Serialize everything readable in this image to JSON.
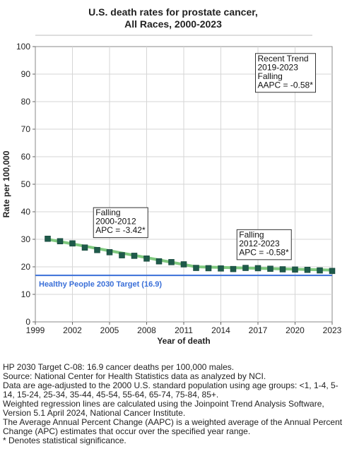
{
  "chart_data": {
    "type": "line",
    "title": [
      "U.S. death rates for prostate cancer,",
      "All Races,  2000-2023"
    ],
    "xlabel": "Year of death",
    "ylabel": "Rate per 100,000",
    "xlim": [
      1999,
      2023
    ],
    "ylim": [
      0,
      100
    ],
    "x_ticks": [
      1999,
      2002,
      2005,
      2008,
      2011,
      2014,
      2017,
      2020,
      2023
    ],
    "y_ticks": [
      0,
      10,
      20,
      30,
      40,
      50,
      60,
      70,
      80,
      90,
      100
    ],
    "grid": true,
    "series": [
      {
        "name": "",
        "marker": "square",
        "color": "#1e5a4a",
        "x": [
          2000,
          2001,
          2002,
          2003,
          2004,
          2005,
          2006,
          2007,
          2008,
          2009,
          2010,
          2011,
          2012,
          2013,
          2014,
          2015,
          2016,
          2017,
          2018,
          2019,
          2020,
          2021,
          2022,
          2023
        ],
        "y": [
          30.2,
          29.3,
          28.5,
          27.0,
          26.1,
          25.3,
          24.2,
          24.0,
          23.0,
          22.0,
          21.7,
          20.9,
          19.6,
          19.5,
          19.4,
          19.2,
          19.6,
          19.5,
          19.3,
          19.1,
          19.0,
          18.9,
          18.7,
          18.5
        ]
      }
    ],
    "trend_segments": [
      {
        "x": [
          2000,
          2012
        ],
        "y": [
          30.0,
          20.0
        ],
        "color": "#7fc97f"
      },
      {
        "x": [
          2012,
          2023
        ],
        "y": [
          20.0,
          18.8
        ],
        "color": "#7fc97f"
      }
    ],
    "target": {
      "value": 16.9,
      "label": "Healthy People 2030 Target (16.9)",
      "color": "#3a6fd8"
    },
    "annotations": [
      {
        "lines": [
          "Recent Trend",
          "2019-2023",
          "Falling",
          "AAPC = -0.58*"
        ],
        "anchor_x": 2016.8,
        "anchor_y": 97.5
      },
      {
        "lines": [
          "Falling",
          "2000-2012",
          "APC = -3.42*"
        ],
        "anchor_x": 2003.7,
        "anchor_y": 41.5
      },
      {
        "lines": [
          "Falling",
          "2012-2023",
          "APC = -0.58*"
        ],
        "anchor_x": 2015.3,
        "anchor_y": 33.5
      }
    ]
  },
  "footnotes": [
    "HP 2030 Target C-08: 16.9 cancer deaths per 100,000 males.",
    "Source: National Center for Health Statistics data as analyzed by NCI.",
    "Data are age-adjusted to the 2000 U.S. standard population using age groups: <1, 1-4, 5-14, 15-24, 25-34, 35-44, 45-54, 55-64, 65-74, 75-84, 85+.",
    "Weighted regression lines are calculated using the Joinpoint Trend Analysis Software, Version 5.1 April 2024, National Cancer Institute.",
    "The Average Annual Percent Change (AAPC) is a weighted average of the Annual Percent Change (APC) estimates that occur over the specified year range.",
    "* Denotes statistical significance."
  ]
}
